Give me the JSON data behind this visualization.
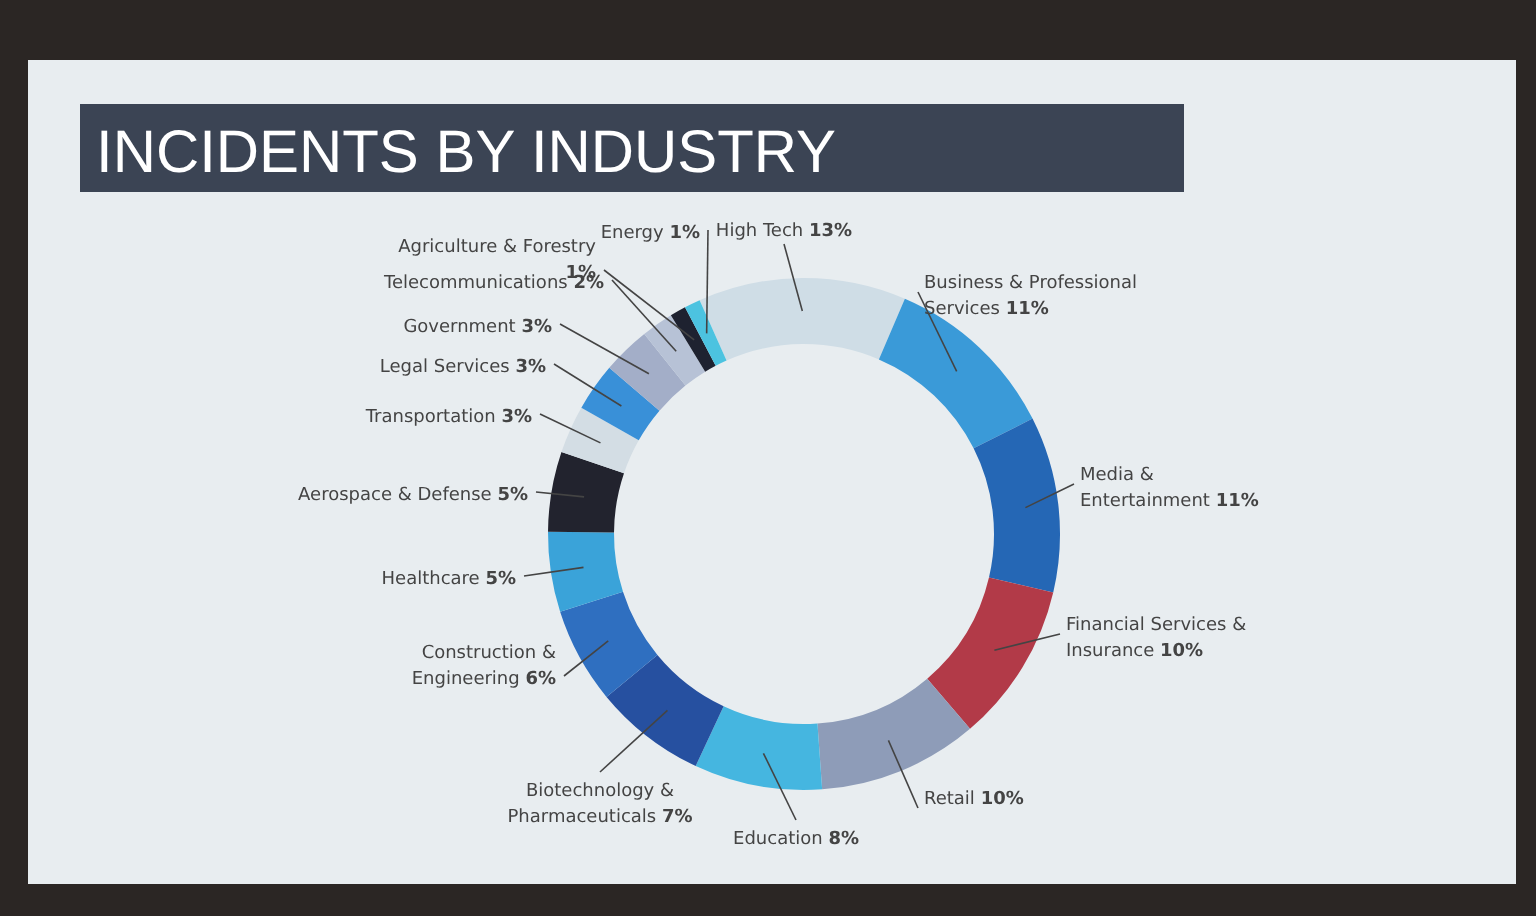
{
  "chart_data": {
    "type": "donut",
    "title": "INCIDENTS BY INDUSTRY",
    "categories": [
      "High Tech",
      "Business & Professional Services",
      "Media & Entertainment",
      "Financial Services & Insurance",
      "Retail",
      "Education",
      "Biotechnology & Pharmaceuticals",
      "Construction & Engineering",
      "Healthcare",
      "Aerospace & Defense",
      "Transportation",
      "Legal Services",
      "Government",
      "Telecommunications",
      "Agriculture & Forestry",
      "Energy"
    ],
    "values": [
      13,
      11,
      11,
      10,
      10,
      8,
      7,
      6,
      5,
      5,
      3,
      3,
      3,
      2,
      1,
      1
    ],
    "value_labels": [
      "13%",
      "11%",
      "11%",
      "10%",
      "10%",
      "8%",
      "7%",
      "6%",
      "5%",
      "5%",
      "3%",
      "3%",
      "3%",
      "2%",
      "1%",
      "1%"
    ],
    "colors": [
      "#cfdde6",
      "#3a9ad8",
      "#2567b5",
      "#b23a48",
      "#8e9cb8",
      "#45b6e0",
      "#2650a0",
      "#2f6fc0",
      "#3aa3d9",
      "#22232e",
      "#d3dde4",
      "#3990d8",
      "#a3aec8",
      "#b7c2d6",
      "#1e2230",
      "#4cc3e0"
    ]
  }
}
